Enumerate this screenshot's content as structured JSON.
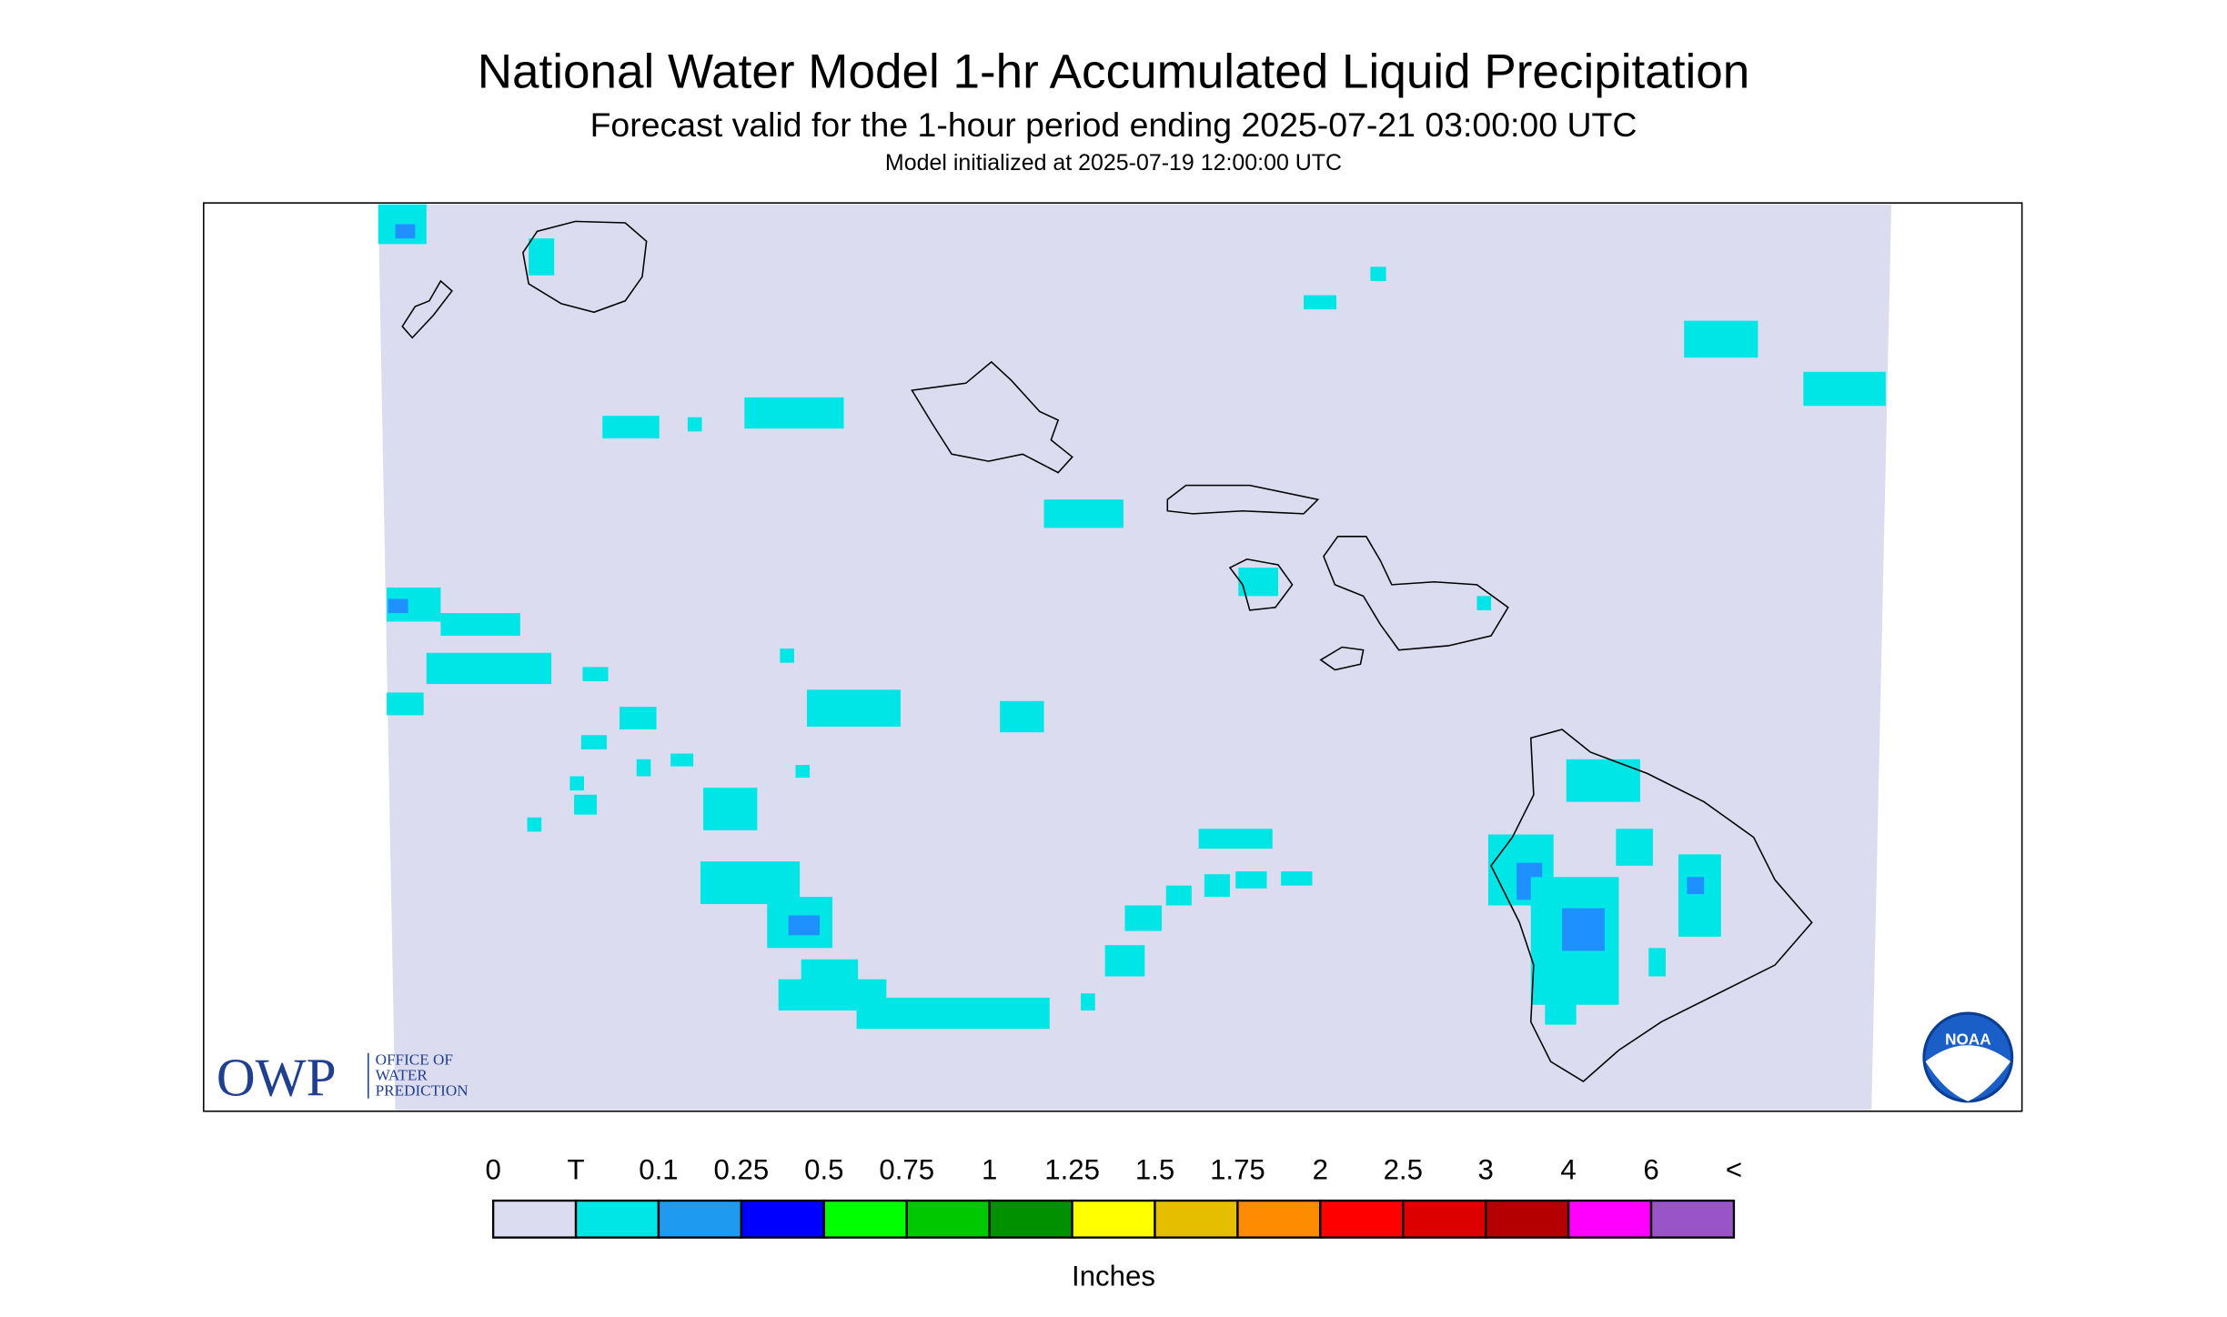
{
  "header": {
    "title": "National Water Model 1-hr Accumulated Liquid Precipitation",
    "subtitle": "Forecast valid for the 1-hour period ending 2025-07-21 03:00:00 UTC",
    "init": "Model initialized at 2025-07-19 12:00:00 UTC"
  },
  "logos": {
    "owp": "OWP",
    "owp_lines": [
      "OFFICE OF",
      "WATER",
      "PREDICTION"
    ],
    "noaa": "NOAA"
  },
  "legend": {
    "labels": [
      "0",
      "T",
      "0.1",
      "0.25",
      "0.5",
      "0.75",
      "1",
      "1.25",
      "1.5",
      "1.75",
      "2",
      "2.5",
      "3",
      "4",
      "6",
      "<"
    ],
    "colors": [
      "#dcdcf0",
      "#00e5e5",
      "#1e9bf0",
      "#0000ff",
      "#00ff00",
      "#00c800",
      "#009000",
      "#ffff00",
      "#e6be00",
      "#ff8c00",
      "#ff0000",
      "#dc0000",
      "#b40000",
      "#ff00ff",
      "#9955c8"
    ],
    "unit": "Inches"
  }
}
